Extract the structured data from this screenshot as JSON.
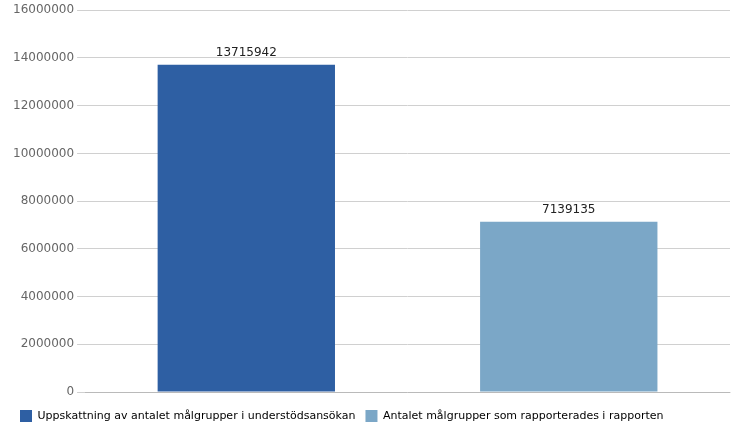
{
  "chart_data": {
    "type": "bar",
    "categories": [
      "Uppskattning av antalet målgrupper i understödsansökan",
      "Antalet målgrupper som rapporterades i rapporten"
    ],
    "values": [
      13715942,
      7139135
    ],
    "colors": [
      "#2E5FA3",
      "#7BA7C7"
    ],
    "ylim": [
      0,
      16000000
    ],
    "yticks": [
      0,
      2000000,
      4000000,
      6000000,
      8000000,
      10000000,
      12000000,
      14000000,
      16000000
    ],
    "grid": true,
    "legend": "lower left",
    "data_labels": true,
    "tick_labels": "y"
  }
}
